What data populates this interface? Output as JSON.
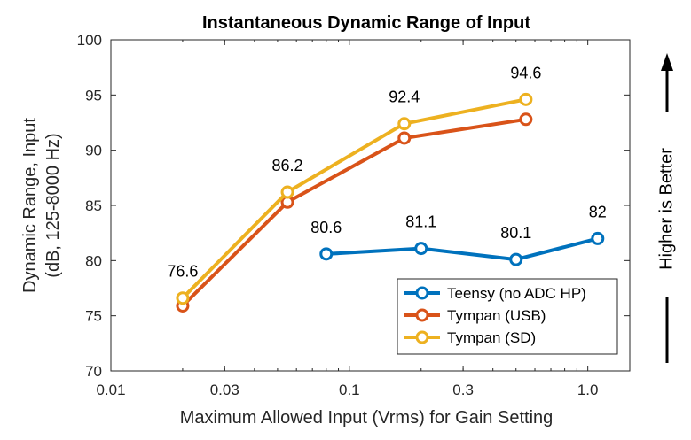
{
  "chart_data": {
    "type": "line",
    "title": "Instantaneous Dynamic Range of Input",
    "xlabel": "Maximum Allowed Input (Vrms) for Gain Setting",
    "ylabel_line1": "Dynamic Range, Input",
    "ylabel_line2": "(dB, 125-8000 Hz)",
    "x_scale": "log",
    "xlim": [
      0.01,
      1.5
    ],
    "ylim": [
      70,
      100
    ],
    "x_ticks": [
      0.01,
      0.03,
      0.1,
      0.3,
      1.0
    ],
    "x_tick_labels": [
      "0.01",
      "0.03",
      "0.1",
      "0.3",
      "1.0"
    ],
    "y_ticks": [
      70,
      75,
      80,
      85,
      90,
      95,
      100
    ],
    "y_tick_labels": [
      "70",
      "75",
      "80",
      "85",
      "90",
      "95",
      "100"
    ],
    "grid": false,
    "legend_position": "bottom-right",
    "series": [
      {
        "name": "Teensy (no ADC HP)",
        "color": "#0072BD",
        "x": [
          0.08,
          0.2,
          0.5,
          1.1
        ],
        "y": [
          80.6,
          81.1,
          80.1,
          82.0
        ],
        "labels": [
          "80.6",
          "81.1",
          "80.1",
          "82"
        ]
      },
      {
        "name": "Tympan (USB)",
        "color": "#D95319",
        "x": [
          0.02,
          0.055,
          0.17,
          0.55
        ],
        "y": [
          75.9,
          85.3,
          91.1,
          92.8
        ],
        "labels": []
      },
      {
        "name": "Tympan (SD)",
        "color": "#EDB120",
        "x": [
          0.02,
          0.055,
          0.17,
          0.55
        ],
        "y": [
          76.6,
          86.2,
          92.4,
          94.6
        ],
        "labels": [
          "76.6",
          "86.2",
          "92.4",
          "94.6"
        ]
      }
    ],
    "side_annotation": "Higher is Better"
  }
}
